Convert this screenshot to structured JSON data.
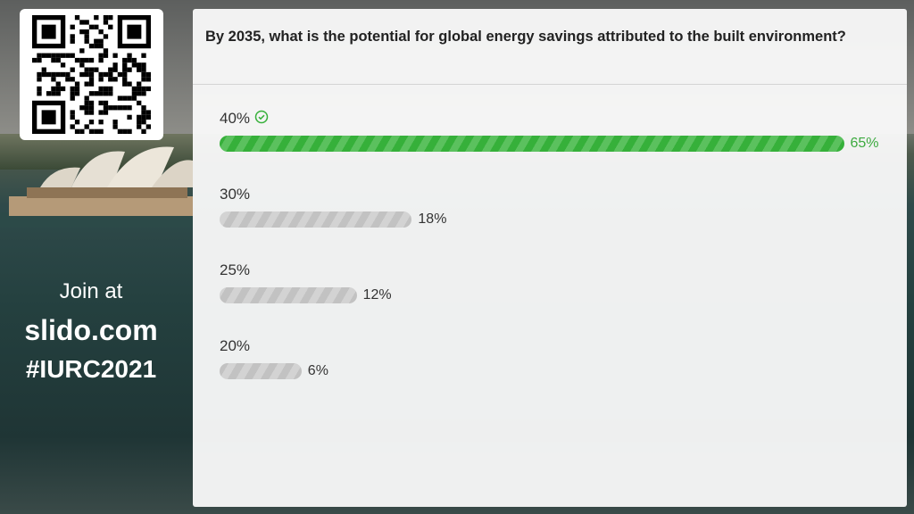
{
  "sidebar": {
    "join_line1": "Join at",
    "join_line2": "slido.com",
    "join_line3": "#IURC2021"
  },
  "poll": {
    "question": "By 2035, what is the potential for global energy savings attributed to the built environment?",
    "options": [
      {
        "label": "40%",
        "result": "65%",
        "value": 65,
        "correct": true
      },
      {
        "label": "30%",
        "result": "18%",
        "value": 18,
        "correct": false
      },
      {
        "label": "25%",
        "result": "12%",
        "value": 12,
        "correct": false
      },
      {
        "label": "20%",
        "result": "6%",
        "value": 6,
        "correct": false
      }
    ]
  },
  "colors": {
    "correct": "#36b03a",
    "neutral": "#c2c2c2"
  }
}
